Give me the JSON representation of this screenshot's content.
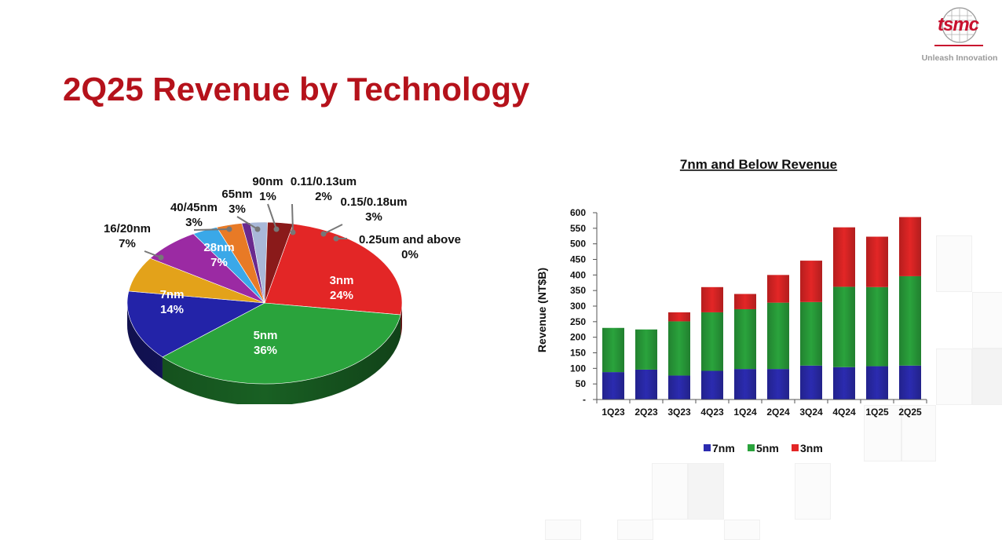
{
  "title": "2Q25 Revenue by Technology",
  "logo": {
    "text": "tsmc",
    "tagline": "Unleash Innovation"
  },
  "colors": {
    "brand": "#b5121b",
    "n7": "#2b2bb0",
    "n5": "#2aa33c",
    "n3": "#e32626"
  },
  "chart_data": [
    {
      "type": "pie",
      "title": "",
      "slices": [
        {
          "label": "3nm",
          "value": 24,
          "pct": "24%",
          "color": "#e32626"
        },
        {
          "label": "5nm",
          "value": 36,
          "pct": "36%",
          "color": "#2aa33c"
        },
        {
          "label": "7nm",
          "value": 14,
          "pct": "14%",
          "color": "#2323a8"
        },
        {
          "label": "16/20nm",
          "value": 7,
          "pct": "7%",
          "color": "#e3a21a"
        },
        {
          "label": "28nm",
          "value": 7,
          "pct": "7%",
          "color": "#9b2aa3"
        },
        {
          "label": "40/45nm",
          "value": 3,
          "pct": "3%",
          "color": "#3aa8e8"
        },
        {
          "label": "65nm",
          "value": 3,
          "pct": "3%",
          "color": "#e87a26"
        },
        {
          "label": "90nm",
          "value": 1,
          "pct": "1%",
          "color": "#6a2a8e"
        },
        {
          "label": "0.11/0.13um",
          "value": 2,
          "pct": "2%",
          "color": "#a9b8d8"
        },
        {
          "label": "0.15/0.18um",
          "value": 3,
          "pct": "3%",
          "color": "#8a1a1a"
        },
        {
          "label": "0.25um and above",
          "value": 0,
          "pct": "0%",
          "color": "#9a9a9a"
        }
      ]
    },
    {
      "type": "bar",
      "stacked": true,
      "title": "7nm and Below Revenue",
      "ylabel": "Revenue (NT$B)",
      "ylim": [
        0,
        600
      ],
      "yticks": [
        "-",
        "50",
        "100",
        "150",
        "200",
        "250",
        "300",
        "350",
        "400",
        "450",
        "500",
        "550",
        "600"
      ],
      "categories": [
        "1Q23",
        "2Q23",
        "3Q23",
        "4Q23",
        "1Q24",
        "2Q24",
        "3Q24",
        "4Q24",
        "1Q25",
        "2Q25"
      ],
      "series": [
        {
          "name": "7nm",
          "color": "#2b2bb0",
          "values": [
            88,
            96,
            77,
            92,
            98,
            98,
            109,
            104,
            107,
            109
          ]
        },
        {
          "name": "5nm",
          "color": "#2aa33c",
          "values": [
            142,
            129,
            174,
            188,
            192,
            213,
            204,
            258,
            254,
            287
          ]
        },
        {
          "name": "3nm",
          "color": "#e32626",
          "values": [
            0,
            0,
            29,
            81,
            49,
            89,
            133,
            191,
            162,
            190
          ]
        }
      ],
      "legend_position": "bottom"
    }
  ]
}
